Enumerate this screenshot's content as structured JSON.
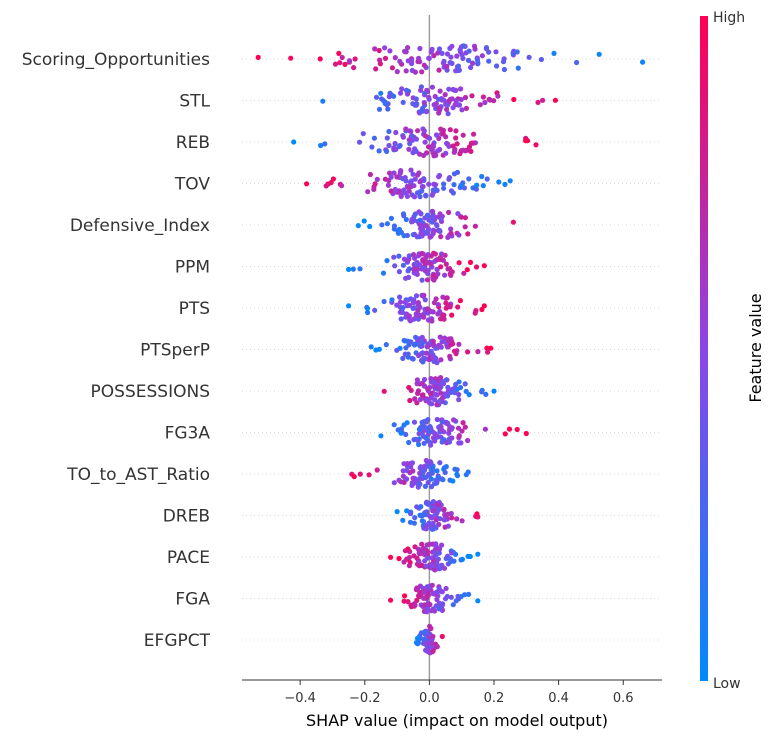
{
  "chart_data": {
    "type": "scatter",
    "subtype": "shap-beeswarm-summary",
    "xlabel": "SHAP value (impact on model output)",
    "xlim": [
      -0.58,
      0.72
    ],
    "xticks": [
      -0.4,
      -0.2,
      0.0,
      0.2,
      0.4,
      0.6
    ],
    "xtick_labels": [
      "−0.4",
      "−0.2",
      "0.0",
      "0.2",
      "0.4",
      "0.6"
    ],
    "features": [
      "Scoring_Opportunities",
      "STL",
      "REB",
      "TOV",
      "Defensive_Index",
      "PPM",
      "PTS",
      "PTSperP",
      "POSSESSIONS",
      "FG3A",
      "TO_to_AST_Ratio",
      "DREB",
      "PACE",
      "FGA",
      "EFGPCT"
    ],
    "feature_profiles": [
      {
        "range": [
          -0.53,
          0.66
        ],
        "low_side": "right",
        "n": 110
      },
      {
        "range": [
          -0.33,
          0.39
        ],
        "low_side": "left",
        "n": 100
      },
      {
        "range": [
          -0.42,
          0.33
        ],
        "low_side": "left",
        "n": 100
      },
      {
        "range": [
          -0.38,
          0.25
        ],
        "low_side": "right",
        "n": 100
      },
      {
        "range": [
          -0.22,
          0.26
        ],
        "low_side": "left",
        "n": 95
      },
      {
        "range": [
          -0.25,
          0.17
        ],
        "low_side": "left",
        "n": 95
      },
      {
        "range": [
          -0.25,
          0.17
        ],
        "low_side": "left",
        "n": 95
      },
      {
        "range": [
          -0.18,
          0.19
        ],
        "low_side": "left",
        "n": 95
      },
      {
        "range": [
          -0.14,
          0.2
        ],
        "low_side": "right",
        "n": 95
      },
      {
        "range": [
          -0.15,
          0.3
        ],
        "low_side": "left",
        "n": 95
      },
      {
        "range": [
          -0.24,
          0.12
        ],
        "low_side": "right",
        "n": 90
      },
      {
        "range": [
          -0.1,
          0.15
        ],
        "low_side": "left",
        "n": 85
      },
      {
        "range": [
          -0.12,
          0.15
        ],
        "low_side": "right",
        "n": 85
      },
      {
        "range": [
          -0.12,
          0.15
        ],
        "low_side": "right",
        "n": 80
      },
      {
        "range": [
          -0.04,
          0.04
        ],
        "low_side": "left",
        "n": 50
      }
    ],
    "colorbar": {
      "label": "Feature value",
      "high_label": "High",
      "low_label": "Low",
      "low_color": "#008afb",
      "mid_color": "#8c45e6",
      "high_color": "#ff0052"
    },
    "zero_line": true,
    "row_gridlines": "dotted"
  }
}
